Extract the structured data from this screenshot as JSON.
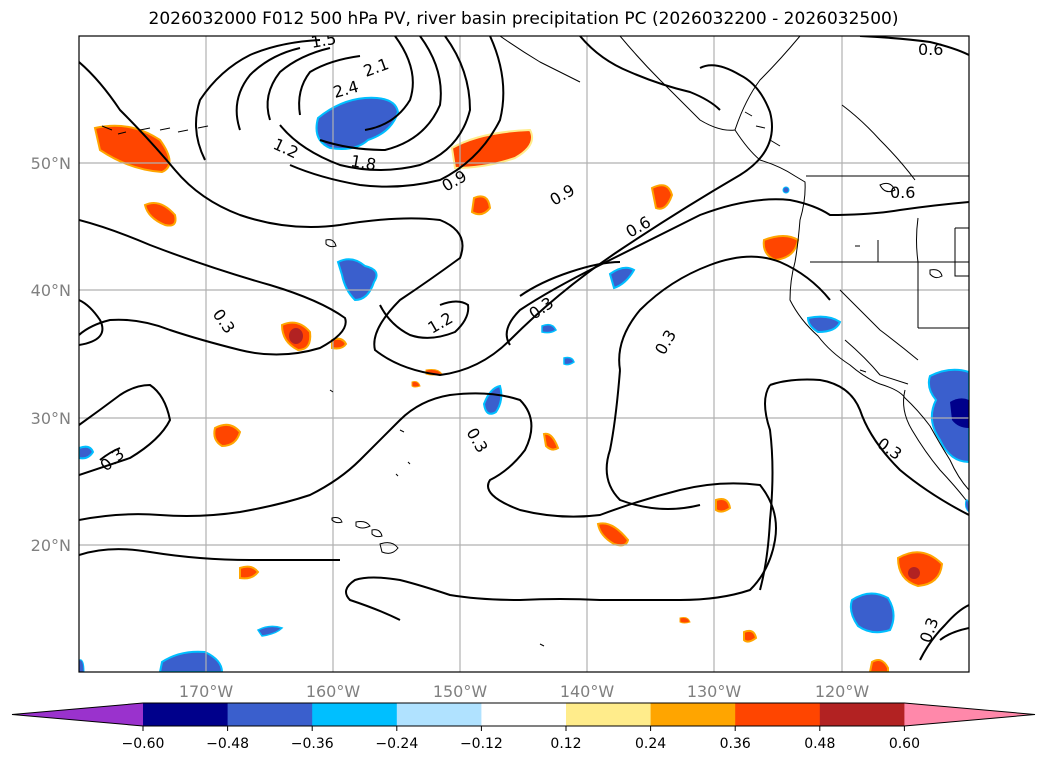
{
  "title": "2026032000 F012 500 hPa PV, river basin precipitation PC (2026032200 - 2026032500)",
  "latitude_labels": [
    "50°N",
    "40°N",
    "30°N",
    "20°N"
  ],
  "longitude_labels": [
    "170°W",
    "160°W",
    "150°W",
    "140°W",
    "130°W",
    "120°W"
  ],
  "contour_labels": [
    "2.1",
    "2.4",
    "1.5",
    "1.2",
    "1.8",
    "0.9",
    "0.9",
    "0.6",
    "0.6",
    "0.6",
    "0.3",
    "1.2",
    "0.3",
    "0.3",
    "0.3",
    "0.3",
    "0.3",
    "0.3"
  ],
  "colorbar": {
    "tick_labels": [
      "−0.60",
      "−0.48",
      "−0.36",
      "−0.24",
      "−0.12",
      "0.12",
      "0.24",
      "0.36",
      "0.48",
      "0.60"
    ],
    "colors": [
      "#9a32cd",
      "#00008b",
      "#3a5fcd",
      "#00bfff",
      "#b0e2ff",
      "#ffffff",
      "#ffec8b",
      "#ffa500",
      "#ff4500",
      "#b22222",
      "#ff88aa"
    ]
  },
  "colors": {
    "positive_strong": "#ff4500",
    "positive_mid": "#ffa500",
    "positive_light": "#ffec8b",
    "negative_strong": "#3a5fcd",
    "negative_light": "#00bfff",
    "negative_dark": "#00008b",
    "extreme_positive": "#b22222"
  }
}
